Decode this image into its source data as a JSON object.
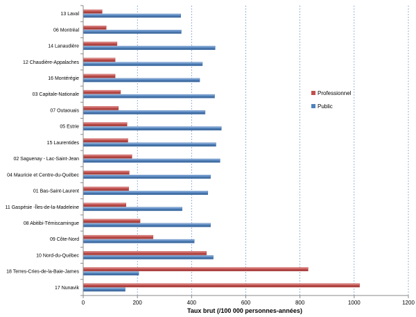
{
  "chart_data": {
    "type": "bar",
    "orientation": "horizontal",
    "title": "",
    "xlabel": "Taux brut (/100 000 personnes-années)",
    "ylabel": "",
    "xlim": [
      0,
      1200
    ],
    "xticks": [
      0,
      200,
      400,
      600,
      800,
      1000,
      1200
    ],
    "grid": "vertical dashed",
    "legend_position": "right",
    "categories": [
      "13 Laval",
      "06 Montréal",
      "14 Lanaudière",
      "12 Chaudière-Appalaches",
      "16 Montérégie",
      "03 Capitale-Nationale",
      "07 Outaouais",
      "05 Estrie",
      "15 Laurentides",
      "02 Saguenay - Lac-Saint-Jean",
      "04 Mauricie et Centre-du-Québec",
      "01 Bas-Saint-Laurent",
      "11 Gaspésie -Îles-de-la-Madeleine",
      "08 Abitibi-Témiscamingue",
      "09 Côte-Nord",
      "10 Nord-du-Québec",
      "18 Terres-Cries-de-la-Baie-James",
      "17 Nunavik"
    ],
    "series": [
      {
        "name": "Professionnel",
        "color": "#c0504d",
        "values": [
          70,
          85,
          125,
          118,
          118,
          138,
          130,
          162,
          165,
          180,
          170,
          168,
          158,
          210,
          258,
          455,
          830,
          1020
        ]
      },
      {
        "name": "Public",
        "color": "#4f81bd",
        "values": [
          360,
          362,
          487,
          440,
          430,
          485,
          450,
          510,
          490,
          505,
          470,
          460,
          365,
          470,
          410,
          480,
          205,
          155
        ]
      }
    ]
  }
}
